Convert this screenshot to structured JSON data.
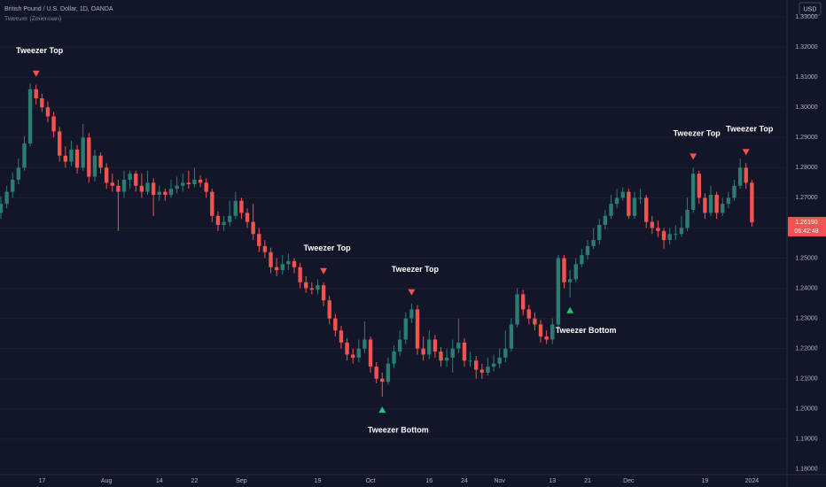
{
  "chart_data": {
    "type": "candlestick",
    "title": "British Pound / U.S. Dollar, 1D, OANDA",
    "subtitle": "Tweezer (Zeiierman)",
    "currency": "USD",
    "up_color": "#2b7d72",
    "down_color": "#f05350",
    "grid": true,
    "ylim": [
      1.1782,
      1.3356
    ],
    "yticks": [
      {
        "value": 1.18,
        "label": "1.18000"
      },
      {
        "value": 1.19,
        "label": "1.19000"
      },
      {
        "value": 1.2,
        "label": "1.20000"
      },
      {
        "value": 1.21,
        "label": "1.21000"
      },
      {
        "value": 1.22,
        "label": "1.22000"
      },
      {
        "value": 1.23,
        "label": "1.23000"
      },
      {
        "value": 1.24,
        "label": "1.24000"
      },
      {
        "value": 1.25,
        "label": "1.25000"
      },
      {
        "value": 1.26,
        "label": "1.26000"
      },
      {
        "value": 1.27,
        "label": "1.27000"
      },
      {
        "value": 1.28,
        "label": "1.28000"
      },
      {
        "value": 1.29,
        "label": "1.29000"
      },
      {
        "value": 1.3,
        "label": "1.30000"
      },
      {
        "value": 1.31,
        "label": "1.31000"
      },
      {
        "value": 1.32,
        "label": "1.32000"
      },
      {
        "value": 1.33,
        "label": "1.33000"
      }
    ],
    "last_price": {
      "value": 1.2619,
      "label": "1.26190"
    },
    "countdown": "06:42:48",
    "categories": [
      null,
      null,
      null,
      null,
      null,
      null,
      null,
      "17",
      null,
      null,
      null,
      null,
      null,
      null,
      null,
      null,
      null,
      null,
      "Aug",
      null,
      null,
      null,
      null,
      null,
      null,
      null,
      null,
      "14",
      null,
      null,
      null,
      null,
      null,
      "22",
      null,
      null,
      null,
      null,
      null,
      null,
      null,
      "Sep",
      null,
      null,
      null,
      null,
      null,
      null,
      null,
      null,
      null,
      null,
      null,
      null,
      "19",
      null,
      null,
      null,
      null,
      null,
      null,
      null,
      null,
      "Oct",
      null,
      null,
      null,
      null,
      null,
      null,
      null,
      null,
      null,
      "16",
      null,
      null,
      null,
      null,
      null,
      "24",
      null,
      null,
      null,
      null,
      null,
      "Nov",
      null,
      null,
      null,
      null,
      null,
      null,
      null,
      null,
      "13",
      null,
      null,
      null,
      null,
      null,
      "21",
      null,
      null,
      null,
      null,
      null,
      null,
      "Dec",
      null,
      null,
      null,
      null,
      null,
      null,
      null,
      null,
      null,
      null,
      null,
      null,
      "19",
      null,
      null,
      null,
      null,
      null,
      null,
      null,
      "2024"
    ],
    "ohlc": [
      [
        1.265,
        1.2705,
        1.263,
        1.268
      ],
      [
        1.268,
        1.274,
        1.2665,
        1.272
      ],
      [
        1.272,
        1.2785,
        1.27,
        1.276
      ],
      [
        1.276,
        1.283,
        1.2745,
        1.28
      ],
      [
        1.28,
        1.2905,
        1.279,
        1.288
      ],
      [
        1.288,
        1.308,
        1.287,
        1.306
      ],
      [
        1.306,
        1.3075,
        1.301,
        1.303
      ],
      [
        1.303,
        1.3045,
        1.2985,
        1.3
      ],
      [
        1.3,
        1.302,
        1.295,
        1.297
      ],
      [
        1.297,
        1.2985,
        1.29,
        1.292
      ],
      [
        1.292,
        1.2935,
        1.282,
        1.284
      ],
      [
        1.284,
        1.287,
        1.28,
        1.282
      ],
      [
        1.282,
        1.289,
        1.2805,
        1.286
      ],
      [
        1.286,
        1.2875,
        1.278,
        1.28
      ],
      [
        1.28,
        1.2945,
        1.279,
        1.29
      ],
      [
        1.29,
        1.2915,
        1.275,
        1.277
      ],
      [
        1.277,
        1.286,
        1.2755,
        1.284
      ],
      [
        1.284,
        1.285,
        1.278,
        1.28
      ],
      [
        1.28,
        1.2815,
        1.273,
        1.275
      ],
      [
        1.275,
        1.278,
        1.272,
        1.274
      ],
      [
        1.274,
        1.276,
        1.259,
        1.272
      ],
      [
        1.272,
        1.279,
        1.27,
        1.276
      ],
      [
        1.276,
        1.279,
        1.273,
        1.278
      ],
      [
        1.278,
        1.279,
        1.272,
        1.274
      ],
      [
        1.274,
        1.278,
        1.27,
        1.272
      ],
      [
        1.272,
        1.279,
        1.271,
        1.275
      ],
      [
        1.275,
        1.2765,
        1.264,
        1.271
      ],
      [
        1.271,
        1.274,
        1.269,
        1.272
      ],
      [
        1.272,
        1.273,
        1.269,
        1.271
      ],
      [
        1.271,
        1.276,
        1.27,
        1.273
      ],
      [
        1.273,
        1.277,
        1.2715,
        1.274
      ],
      [
        1.274,
        1.278,
        1.272,
        1.275
      ],
      [
        1.275,
        1.279,
        1.273,
        1.2745
      ],
      [
        1.2745,
        1.28,
        1.2735,
        1.276
      ],
      [
        1.276,
        1.2775,
        1.2735,
        1.275
      ],
      [
        1.275,
        1.2765,
        1.27,
        1.272
      ],
      [
        1.272,
        1.273,
        1.262,
        1.264
      ],
      [
        1.264,
        1.2655,
        1.259,
        1.261
      ],
      [
        1.261,
        1.264,
        1.259,
        1.262
      ],
      [
        1.262,
        1.269,
        1.2605,
        1.264
      ],
      [
        1.264,
        1.272,
        1.263,
        1.269
      ],
      [
        1.269,
        1.27,
        1.263,
        1.265
      ],
      [
        1.265,
        1.2665,
        1.26,
        1.262
      ],
      [
        1.262,
        1.268,
        1.256,
        1.258
      ],
      [
        1.258,
        1.26,
        1.252,
        1.254
      ],
      [
        1.254,
        1.256,
        1.25,
        1.252
      ],
      [
        1.252,
        1.2535,
        1.245,
        1.247
      ],
      [
        1.247,
        1.25,
        1.244,
        1.246
      ],
      [
        1.246,
        1.251,
        1.2445,
        1.248
      ],
      [
        1.248,
        1.2515,
        1.246,
        1.249
      ],
      [
        1.249,
        1.25,
        1.245,
        1.247
      ],
      [
        1.247,
        1.2485,
        1.24,
        1.242
      ],
      [
        1.242,
        1.244,
        1.2385,
        1.24
      ],
      [
        1.24,
        1.242,
        1.238,
        1.2395
      ],
      [
        1.2395,
        1.243,
        1.238,
        1.241
      ],
      [
        1.241,
        1.242,
        1.234,
        1.236
      ],
      [
        1.236,
        1.2375,
        1.228,
        1.23
      ],
      [
        1.23,
        1.2315,
        1.224,
        1.226
      ],
      [
        1.226,
        1.2275,
        1.22,
        1.222
      ],
      [
        1.222,
        1.2235,
        1.216,
        1.218
      ],
      [
        1.218,
        1.22,
        1.215,
        1.217
      ],
      [
        1.217,
        1.223,
        1.2155,
        1.22
      ],
      [
        1.22,
        1.229,
        1.2185,
        1.223
      ],
      [
        1.223,
        1.224,
        1.212,
        1.214
      ],
      [
        1.214,
        1.2155,
        1.2085,
        1.21
      ],
      [
        1.21,
        1.212,
        1.204,
        1.209
      ],
      [
        1.209,
        1.217,
        1.208,
        1.215
      ],
      [
        1.215,
        1.221,
        1.2135,
        1.219
      ],
      [
        1.219,
        1.226,
        1.2175,
        1.223
      ],
      [
        1.223,
        1.232,
        1.2215,
        1.23
      ],
      [
        1.23,
        1.235,
        1.2285,
        1.233
      ],
      [
        1.233,
        1.2345,
        1.218,
        1.22
      ],
      [
        1.22,
        1.224,
        1.216,
        1.218
      ],
      [
        1.218,
        1.226,
        1.2165,
        1.223
      ],
      [
        1.223,
        1.2245,
        1.217,
        1.219
      ],
      [
        1.219,
        1.2205,
        1.214,
        1.216
      ],
      [
        1.216,
        1.22,
        1.214,
        1.217
      ],
      [
        1.217,
        1.223,
        1.212,
        1.22
      ],
      [
        1.22,
        1.23,
        1.2185,
        1.222
      ],
      [
        1.222,
        1.2235,
        1.214,
        1.216
      ],
      [
        1.216,
        1.219,
        1.214,
        1.216
      ],
      [
        1.216,
        1.2175,
        1.21,
        1.213
      ],
      [
        1.213,
        1.215,
        1.21,
        1.212
      ],
      [
        1.212,
        1.217,
        1.211,
        1.214
      ],
      [
        1.214,
        1.218,
        1.2125,
        1.215
      ],
      [
        1.215,
        1.22,
        1.2135,
        1.217
      ],
      [
        1.217,
        1.226,
        1.2155,
        1.22
      ],
      [
        1.22,
        1.23,
        1.219,
        1.228
      ],
      [
        1.228,
        1.24,
        1.227,
        1.238
      ],
      [
        1.238,
        1.2395,
        1.231,
        1.233
      ],
      [
        1.233,
        1.2345,
        1.228,
        1.23
      ],
      [
        1.23,
        1.232,
        1.226,
        1.228
      ],
      [
        1.228,
        1.2295,
        1.222,
        1.224
      ],
      [
        1.224,
        1.226,
        1.2215,
        1.223
      ],
      [
        1.223,
        1.23,
        1.2215,
        1.228
      ],
      [
        1.228,
        1.251,
        1.227,
        1.25
      ],
      [
        1.25,
        1.251,
        1.24,
        1.242
      ],
      [
        1.242,
        1.246,
        1.237,
        1.243
      ],
      [
        1.243,
        1.25,
        1.242,
        1.248
      ],
      [
        1.248,
        1.253,
        1.247,
        1.251
      ],
      [
        1.251,
        1.256,
        1.2495,
        1.254
      ],
      [
        1.254,
        1.26,
        1.253,
        1.256
      ],
      [
        1.256,
        1.263,
        1.2545,
        1.261
      ],
      [
        1.261,
        1.266,
        1.2595,
        1.264
      ],
      [
        1.264,
        1.271,
        1.263,
        1.268
      ],
      [
        1.268,
        1.273,
        1.2665,
        1.27
      ],
      [
        1.27,
        1.2735,
        1.269,
        1.272
      ],
      [
        1.272,
        1.273,
        1.263,
        1.264
      ],
      [
        1.264,
        1.272,
        1.263,
        1.27
      ],
      [
        1.27,
        1.273,
        1.268,
        1.27
      ],
      [
        1.27,
        1.271,
        1.26,
        1.262
      ],
      [
        1.262,
        1.264,
        1.258,
        1.26
      ],
      [
        1.26,
        1.2625,
        1.257,
        1.259
      ],
      [
        1.259,
        1.26,
        1.253,
        1.256
      ],
      [
        1.256,
        1.26,
        1.2545,
        1.258
      ],
      [
        1.258,
        1.261,
        1.256,
        1.258
      ],
      [
        1.258,
        1.264,
        1.257,
        1.26
      ],
      [
        1.26,
        1.27,
        1.259,
        1.266
      ],
      [
        1.266,
        1.28,
        1.265,
        1.278
      ],
      [
        1.278,
        1.279,
        1.268,
        1.27
      ],
      [
        1.27,
        1.2715,
        1.263,
        1.265
      ],
      [
        1.265,
        1.274,
        1.264,
        1.271
      ],
      [
        1.271,
        1.272,
        1.263,
        1.265
      ],
      [
        1.265,
        1.27,
        1.264,
        1.268
      ],
      [
        1.268,
        1.272,
        1.2665,
        1.27
      ],
      [
        1.27,
        1.276,
        1.269,
        1.274
      ],
      [
        1.274,
        1.283,
        1.273,
        1.28
      ],
      [
        1.28,
        1.2815,
        1.273,
        1.275
      ],
      [
        1.275,
        1.276,
        1.2605,
        1.2619
      ]
    ],
    "annotations": [
      {
        "text": "Tweezer Top",
        "at": 6,
        "side": "top"
      },
      {
        "text": "Tweezer Top",
        "at": 55,
        "side": "top"
      },
      {
        "text": "Tweezer Top",
        "at": 70,
        "side": "top"
      },
      {
        "text": "Tweezer Bottom",
        "at": 65,
        "side": "bottom"
      },
      {
        "text": "Tweezer Bottom",
        "at": 97,
        "side": "bottom"
      },
      {
        "text": "Tweezer Top",
        "at": 118,
        "side": "top"
      },
      {
        "text": "Tweezer Top",
        "at": 127,
        "side": "top"
      }
    ]
  }
}
